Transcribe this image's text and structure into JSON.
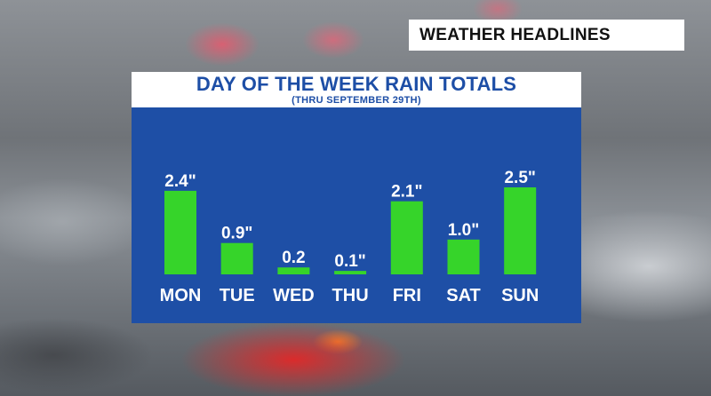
{
  "header": {
    "headline": "WEATHER HEADLINES"
  },
  "colors": {
    "panel": "#1e4fa6",
    "bar": "#36d42a",
    "text": "#ffffff",
    "title_text": "#1d4ea6"
  },
  "chart_data": {
    "type": "bar",
    "title": "DAY OF THE WEEK RAIN TOTALS",
    "subtitle": "(THRU SEPTEMBER 29TH)",
    "categories": [
      "MON",
      "TUE",
      "WED",
      "THU",
      "FRI",
      "SAT",
      "SUN"
    ],
    "values": [
      2.4,
      0.9,
      0.2,
      0.1,
      2.1,
      1.0,
      2.5
    ],
    "data_labels": [
      "2.4\"",
      "0.9\"",
      "0.2",
      "0.1\"",
      "2.1\"",
      "1.0\"",
      "2.5\""
    ],
    "ylim": [
      0,
      2.5
    ],
    "grid": false,
    "legend": "none"
  }
}
